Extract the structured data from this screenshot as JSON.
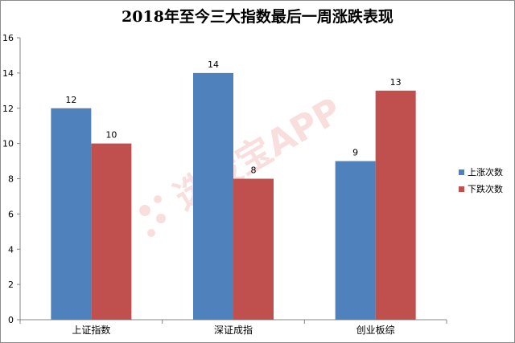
{
  "chart_data": {
    "type": "bar",
    "title": "2018年至今三大指数最后一周涨跌表现",
    "categories": [
      "上证指数",
      "深证成指",
      "创业板综"
    ],
    "series": [
      {
        "name": "上涨次数",
        "values": [
          12,
          14,
          9
        ],
        "color": "#4f81bd"
      },
      {
        "name": "下跌次数",
        "values": [
          10,
          8,
          13
        ],
        "color": "#c0504d"
      }
    ],
    "ylim": [
      0,
      16
    ],
    "yticks": [
      0,
      2,
      4,
      6,
      8,
      10,
      12,
      14,
      16
    ],
    "xlabel": "",
    "ylabel": "",
    "grid": false,
    "legend": "right",
    "data_labels": true
  },
  "watermark": "选股宝APP"
}
